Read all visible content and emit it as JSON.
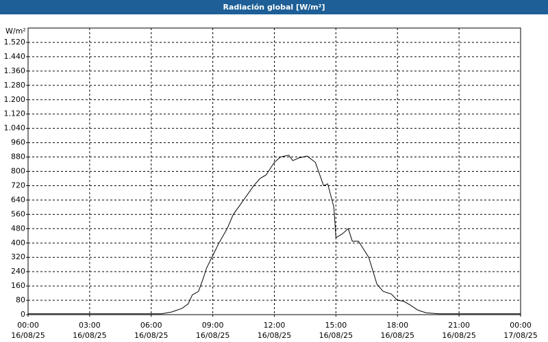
{
  "chart_data": {
    "type": "line",
    "title": "Radiación global [W/m²]",
    "y_unit": "W/m²",
    "x": [
      0,
      3,
      6,
      6.5,
      7,
      7.5,
      7.8,
      8,
      8.3,
      8.5,
      8.7,
      9,
      9.3,
      9.7,
      10,
      10.5,
      11,
      11.3,
      11.6,
      12,
      12.3,
      12.7,
      12.9,
      13.2,
      13.6,
      14,
      14.4,
      14.6,
      14.9,
      15,
      15.3,
      15.6,
      15.8,
      16.1,
      16.6,
      17,
      17.3,
      17.7,
      18,
      18.3,
      18.6,
      19,
      19.4,
      20,
      24
    ],
    "series": [
      {
        "name": "Radiación global",
        "color": "#000000",
        "values": [
          5,
          5,
          5,
          5,
          15,
          35,
          60,
          110,
          130,
          190,
          260,
          330,
          400,
          480,
          560,
          640,
          720,
          760,
          780,
          850,
          880,
          890,
          860,
          875,
          885,
          850,
          720,
          730,
          600,
          430,
          450,
          480,
          410,
          410,
          320,
          170,
          130,
          115,
          80,
          75,
          55,
          25,
          10,
          5,
          5
        ]
      }
    ],
    "xlim": [
      0,
      24
    ],
    "xticks": [
      {
        "value": 0,
        "label": "00:00",
        "sublabel": "16/08/25"
      },
      {
        "value": 3,
        "label": "03:00",
        "sublabel": "16/08/25"
      },
      {
        "value": 6,
        "label": "06:00",
        "sublabel": "16/08/25"
      },
      {
        "value": 9,
        "label": "09:00",
        "sublabel": "16/08/25"
      },
      {
        "value": 12,
        "label": "12:00",
        "sublabel": "16/08/25"
      },
      {
        "value": 15,
        "label": "15:00",
        "sublabel": "16/08/25"
      },
      {
        "value": 18,
        "label": "18:00",
        "sublabel": "16/08/25"
      },
      {
        "value": 21,
        "label": "21:00",
        "sublabel": "16/08/25"
      },
      {
        "value": 24,
        "label": "00:00",
        "sublabel": "17/08/25"
      }
    ],
    "ylim": [
      0,
      1600
    ],
    "yticks": [
      0,
      80,
      160,
      240,
      320,
      400,
      480,
      560,
      640,
      720,
      800,
      880,
      960,
      {
        "value": 1040,
        "label": "1.040"
      },
      {
        "value": 1120,
        "label": "1.120"
      },
      {
        "value": 1200,
        "label": "1.200"
      },
      {
        "value": 1280,
        "label": "1.280"
      },
      {
        "value": 1360,
        "label": "1.360"
      },
      {
        "value": 1440,
        "label": "1.440"
      },
      {
        "value": 1520,
        "label": "1.520"
      }
    ],
    "grid": true
  }
}
